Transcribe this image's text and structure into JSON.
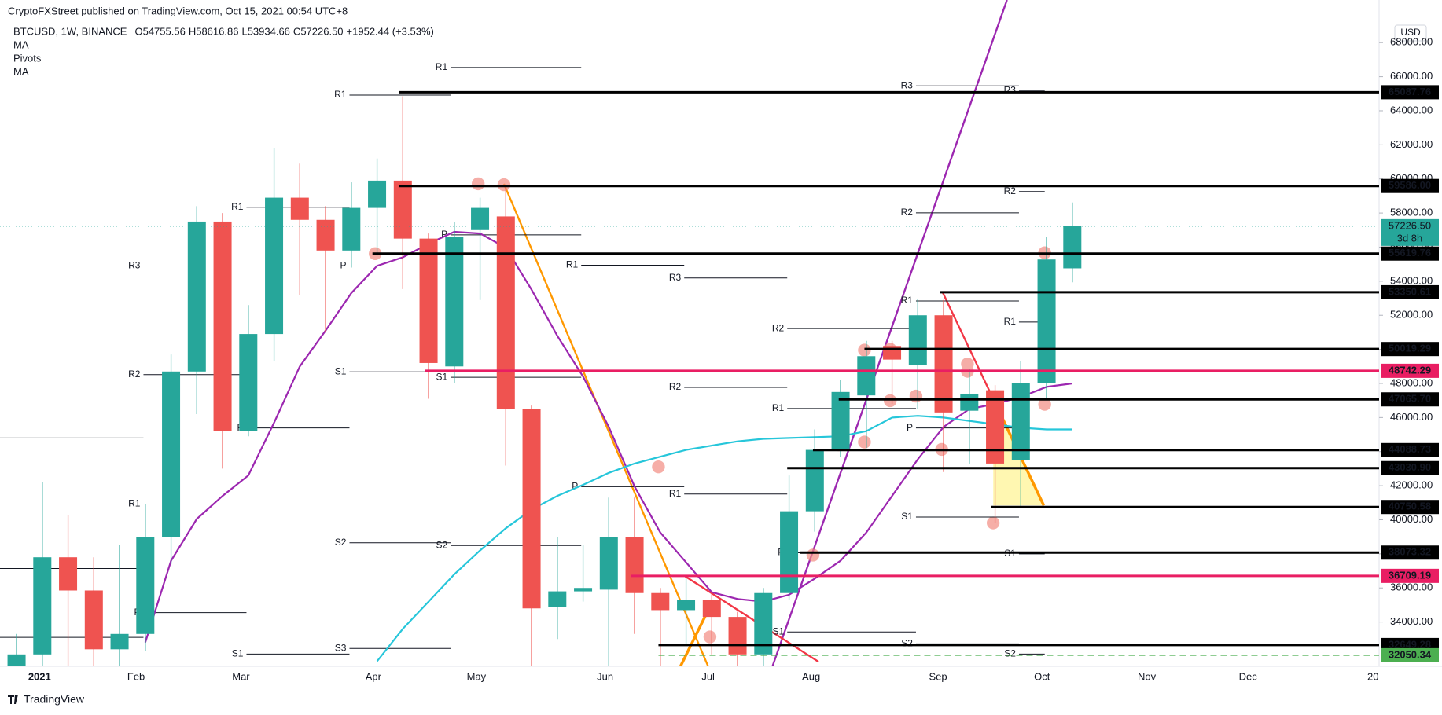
{
  "chart_data": {
    "type": "candlestick",
    "publisher": "CryptoFXStreet published on TradingView.com, Oct 15, 2021 00:54 UTC+8",
    "symbol": "BTCUSD, 1W, BINANCE",
    "ohlc": [
      {
        "key": "O",
        "value": "54755.56"
      },
      {
        "key": "H",
        "value": "58616.86"
      },
      {
        "key": "L",
        "value": "53934.66"
      },
      {
        "key": "C",
        "value": "57226.50"
      }
    ],
    "change": "+1952.44 (+3.53%)",
    "indicators": [
      "MA",
      "Pivots",
      "MA"
    ],
    "currency": "USD",
    "footer": "TradingView",
    "up_color": "#26a69a",
    "down_color": "#ef5350",
    "xtick_labels": [
      "2021",
      "Feb",
      "Mar",
      "Apr",
      "May",
      "Jun",
      "Jul",
      "Aug",
      "Sep",
      "Oct",
      "Nov",
      "Dec",
      "20"
    ],
    "ylim": [
      31400,
      70500
    ],
    "yticks": [
      {
        "value": 34000,
        "label": "34000.00"
      },
      {
        "value": 36000,
        "label": "36000.00"
      },
      {
        "value": 38000,
        "label": "38000.00"
      },
      {
        "value": 40000,
        "label": "40000.00"
      },
      {
        "value": 42000,
        "label": "42000.00"
      },
      {
        "value": 44000,
        "label": "44000.00"
      },
      {
        "value": 46000,
        "label": "46000.00"
      },
      {
        "value": 48000,
        "label": "48000.00"
      },
      {
        "value": 50000,
        "label": "50000.00"
      },
      {
        "value": 52000,
        "label": "52000.00"
      },
      {
        "value": 54000,
        "label": "54000.00"
      },
      {
        "value": 56000,
        "label": "56000.00"
      },
      {
        "value": 58000,
        "label": "58000.00"
      },
      {
        "value": 60000,
        "label": "60000.00"
      },
      {
        "value": 62000,
        "label": "62000.00"
      },
      {
        "value": 64000,
        "label": "64000.00"
      },
      {
        "value": 66000,
        "label": "66000.00"
      },
      {
        "value": 68000,
        "label": "68000.00"
      }
    ],
    "open": [
      28900,
      32100,
      37800,
      35850,
      32400,
      33300,
      39000,
      48700,
      57500,
      45200,
      50900,
      58900,
      57600,
      55800,
      58300,
      59900,
      56500,
      49000,
      57000,
      57800,
      46500,
      34900,
      35800,
      35900,
      39000,
      35700,
      34700,
      35300,
      34300,
      32100,
      35700,
      40500,
      44100,
      47300,
      50200,
      49100,
      52000,
      46400,
      47600,
      43500,
      48000,
      54755.56
    ],
    "high": [
      33300,
      42200,
      40300,
      37800,
      38500,
      40900,
      49700,
      58400,
      58000,
      52600,
      61800,
      60900,
      58400,
      59800,
      61200,
      64850,
      56800,
      57500,
      58900,
      59500,
      46700,
      39000,
      38500,
      41300,
      41300,
      36000,
      36600,
      35800,
      34600,
      36000,
      42600,
      45300,
      48200,
      50500,
      50500,
      52950,
      52900,
      48850,
      47900,
      49300,
      56600,
      58616.86
    ],
    "low": [
      28000,
      28100,
      30400,
      28800,
      29200,
      32300,
      37400,
      46200,
      43000,
      44900,
      49300,
      53200,
      51000,
      54800,
      55500,
      53540,
      47100,
      48000,
      52900,
      43180,
      30000,
      33000,
      35200,
      31200,
      33300,
      28800,
      32700,
      32100,
      31000,
      29300,
      35300,
      39300,
      43700,
      44200,
      46800,
      46500,
      42800,
      43300,
      39800,
      40800,
      47100,
      53934.66
    ],
    "close": [
      32100,
      37800,
      35850,
      32400,
      33300,
      39000,
      48700,
      57500,
      45200,
      50900,
      58900,
      57600,
      55800,
      58300,
      59900,
      56500,
      49200,
      56600,
      58300,
      46500,
      34800,
      35800,
      36000,
      39000,
      35700,
      34700,
      35300,
      34300,
      32100,
      35700,
      40500,
      44100,
      47500,
      49600,
      49400,
      52000,
      46300,
      47400,
      43300,
      48000,
      55274.06,
      57226.5
    ],
    "series": [
      {
        "name": "MA",
        "color": "#9c27b0",
        "values": [
          null,
          null,
          null,
          null,
          null,
          32800,
          37600,
          40050,
          41400,
          42600,
          45700,
          49000,
          51100,
          53300,
          54900,
          55400,
          56200,
          56900,
          56800,
          55960,
          53500,
          50800,
          48400,
          45450,
          41950,
          39250,
          37500,
          35750,
          35350,
          35200,
          35600,
          36550,
          37600,
          39250,
          41400,
          43550,
          45450,
          46500,
          46800,
          47200,
          47800,
          48000
        ]
      },
      {
        "name": "MA",
        "color": "#26c6da",
        "values": [
          null,
          null,
          null,
          null,
          null,
          null,
          null,
          null,
          null,
          null,
          null,
          null,
          null,
          null,
          31700,
          33600,
          35200,
          36800,
          38200,
          39500,
          40600,
          41400,
          42050,
          42750,
          43300,
          43700,
          44100,
          44350,
          44600,
          44750,
          44800,
          44850,
          44900,
          45200,
          46000,
          46100,
          46000,
          45800,
          45600,
          45400,
          45300,
          45300
        ]
      }
    ],
    "last_price": {
      "value": 57226.5,
      "label": "57226.50",
      "countdown": "3d 8h"
    },
    "levels": [
      {
        "value": 65087.76,
        "label": "65087.76",
        "color": "#000000"
      },
      {
        "value": 59586.0,
        "label": "59586.00",
        "color": "#000000"
      },
      {
        "value": 55619.76,
        "label": "55619.76",
        "color": "#000000"
      },
      {
        "value": 53350.61,
        "label": "53350.61",
        "color": "#000000"
      },
      {
        "value": 50019.29,
        "label": "50019.29",
        "color": "#000000"
      },
      {
        "value": 48742.29,
        "label": "48742.29",
        "color": "#e91e63"
      },
      {
        "value": 47065.7,
        "label": "47065.70",
        "color": "#000000"
      },
      {
        "value": 44088.73,
        "label": "44088.73",
        "color": "#000000"
      },
      {
        "value": 43030.9,
        "label": "43030.90",
        "color": "#000000"
      },
      {
        "value": 40750.58,
        "label": "40750.58",
        "color": "#000000"
      },
      {
        "value": 38073.32,
        "label": "38073.32",
        "color": "#000000"
      },
      {
        "value": 36709.19,
        "label": "36709.19",
        "color": "#e91e63"
      },
      {
        "value": 32649.28,
        "label": "32649.28",
        "color": "#000000"
      },
      {
        "value": 32050.34,
        "label": "32050.34",
        "color": "#4caf50"
      }
    ],
    "pivots": [
      {
        "label": "R1",
        "value": 66540
      },
      {
        "label": "R1",
        "value": 64920
      },
      {
        "label": "R1",
        "value": 58340
      },
      {
        "label": "R3",
        "value": 54890
      },
      {
        "label": "R2",
        "value": 48520
      },
      {
        "label": "R1",
        "value": 40920
      },
      {
        "label": "P",
        "value": 34550
      },
      {
        "label": "S1",
        "value": 32120
      },
      {
        "label": "P",
        "value": 54890
      },
      {
        "label": "S1",
        "value": 48680
      },
      {
        "label": "S2",
        "value": 38650
      },
      {
        "label": "S3",
        "value": 32450
      },
      {
        "label": "P",
        "value": 56720
      },
      {
        "label": "S1",
        "value": 48360
      },
      {
        "label": "S2",
        "value": 38490
      },
      {
        "label": "R1",
        "value": 54940
      },
      {
        "label": "P",
        "value": 41940
      },
      {
        "label": "R3",
        "value": 54190
      },
      {
        "label": "R2",
        "value": 47770
      },
      {
        "label": "R1",
        "value": 41510
      },
      {
        "label": "S1",
        "value": 33420
      },
      {
        "label": "R2",
        "value": 51220
      },
      {
        "label": "R1",
        "value": 46530
      },
      {
        "label": "P",
        "value": 38060
      },
      {
        "label": "R3",
        "value": 65460
      },
      {
        "label": "R2",
        "value": 58010
      },
      {
        "label": "R1",
        "value": 52840
      },
      {
        "label": "P",
        "value": 45390
      },
      {
        "label": "S1",
        "value": 40160
      },
      {
        "label": "S2",
        "value": 32720
      },
      {
        "label": "R3",
        "value": 65190
      },
      {
        "label": "R2",
        "value": 59260
      },
      {
        "label": "R1",
        "value": 51600
      },
      {
        "label": "S1",
        "value": 38000
      },
      {
        "label": "S2",
        "value": 32120
      },
      {
        "label": "3",
        "value": 44800
      },
      {
        "label": "2",
        "value": 37140
      },
      {
        "label": "1",
        "value": 33100
      },
      {
        "label": "P",
        "value": 45390
      }
    ]
  }
}
